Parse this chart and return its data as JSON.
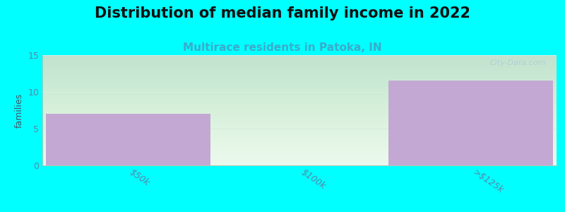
{
  "title": "Distribution of median family income in 2022",
  "subtitle": "Multirace residents in Patoka, IN",
  "categories": [
    "$50k",
    "$100k",
    ">$125k"
  ],
  "values": [
    7,
    0,
    11.5
  ],
  "bar_color": "#c4a8d4",
  "background_color": "#00ffff",
  "plot_bg_color_top": "#dff0e8",
  "plot_bg_color_bottom": "#f8fffc",
  "ylabel": "families",
  "ylim": [
    0,
    15
  ],
  "yticks": [
    0,
    5,
    10,
    15
  ],
  "watermark": "City-Data.com",
  "title_fontsize": 15,
  "subtitle_fontsize": 11,
  "subtitle_color": "#3aaccc",
  "tick_label_color": "#5588aa",
  "ylabel_color": "#445566",
  "grid_color": "#d8ede0",
  "spine_color": "#aaccbb"
}
